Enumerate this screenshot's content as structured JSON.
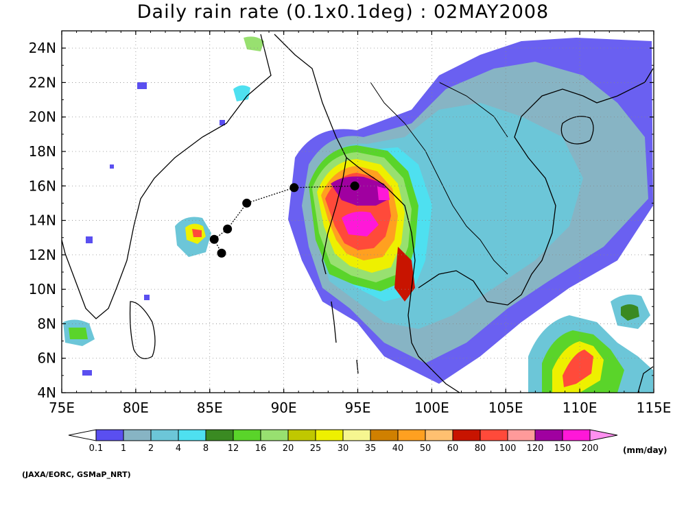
{
  "title": "Daily rain rate (0.1x0.1deg) : 02MAY2008",
  "unit": "(mm/day)",
  "credit": "(JAXA/EORC, GSMaP_NRT)",
  "lon_ticks": [
    "75E",
    "80E",
    "85E",
    "90E",
    "95E",
    "100E",
    "105E",
    "110E",
    "115E"
  ],
  "lat_ticks": [
    "4N",
    "6N",
    "8N",
    "10N",
    "12N",
    "14N",
    "16N",
    "18N",
    "20N",
    "22N",
    "24N"
  ],
  "extent": {
    "lon": [
      75,
      115
    ],
    "lat": [
      4,
      25
    ]
  },
  "colorbar": {
    "labels": [
      "0.1",
      "1",
      "2",
      "4",
      "8",
      "12",
      "16",
      "20",
      "25",
      "30",
      "35",
      "40",
      "50",
      "60",
      "80",
      "100",
      "120",
      "150",
      "200"
    ],
    "colors": [
      "#ffffff",
      "#5a4ff0",
      "#87b4c4",
      "#6cc6d8",
      "#4ee0f0",
      "#3a8a22",
      "#5ad42a",
      "#98e070",
      "#c0c800",
      "#eef000",
      "#f6f690",
      "#d08000",
      "#ffa020",
      "#ffc070",
      "#c81400",
      "#ff4a3a",
      "#ff9a9a",
      "#a000a0",
      "#ff18d8",
      "#ff90f0"
    ]
  },
  "cyclone_track": {
    "name_visible": false,
    "points": [
      {
        "lon": 85.8,
        "lat": 12.1
      },
      {
        "lon": 85.3,
        "lat": 12.9
      },
      {
        "lon": 86.2,
        "lat": 13.5
      },
      {
        "lon": 87.5,
        "lat": 15.0
      },
      {
        "lon": 90.7,
        "lat": 15.9
      },
      {
        "lon": 94.8,
        "lat": 16.0
      }
    ]
  },
  "colors": {
    "grid": "#888888",
    "coast": "#000000",
    "track": "#000000"
  }
}
